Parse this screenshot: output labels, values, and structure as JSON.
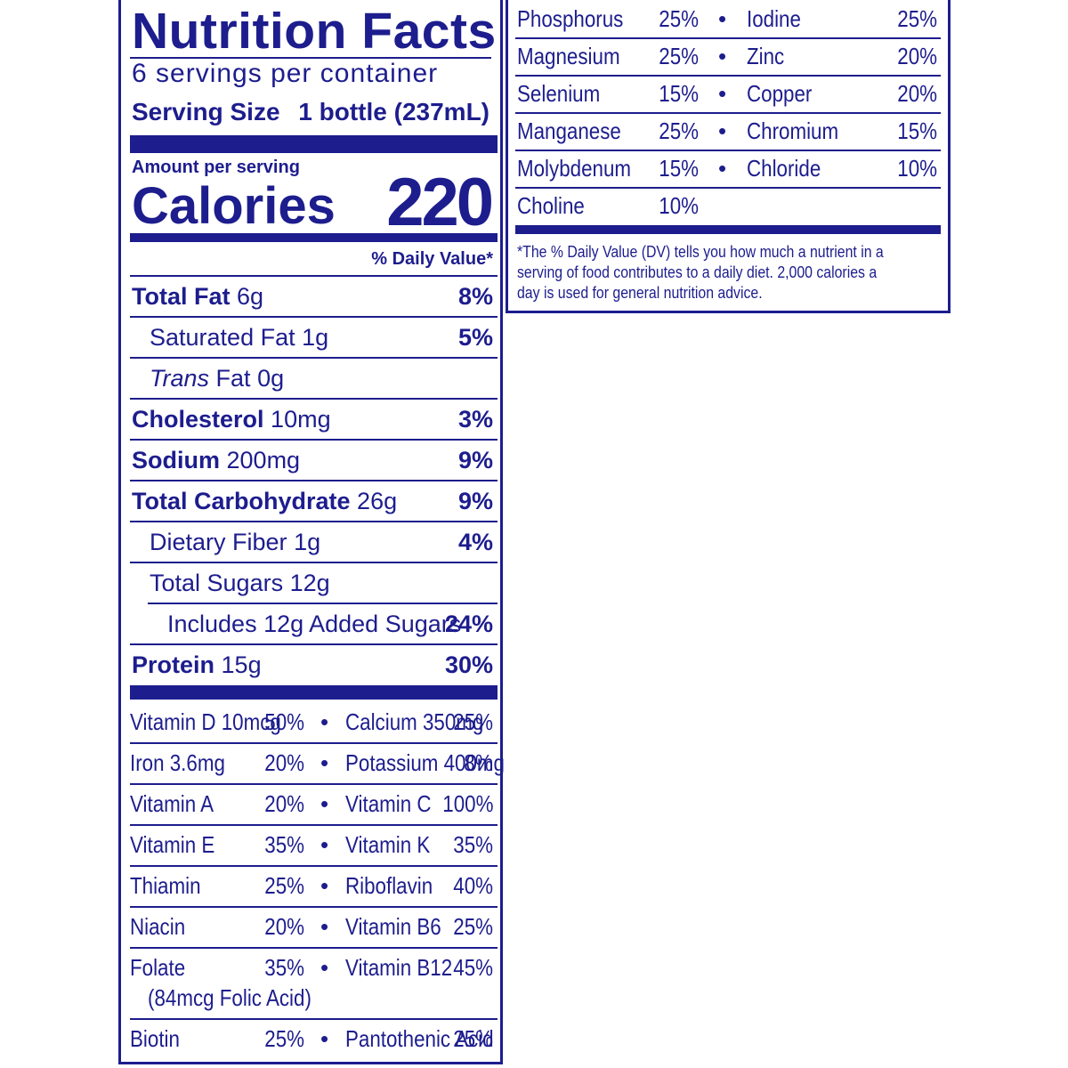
{
  "label": {
    "title": "Nutrition Facts",
    "servings_per_container": "6 servings per container",
    "serving_size_label": "Serving Size",
    "serving_size_value": "1 bottle (237mL)",
    "amount_per_serving": "Amount per serving",
    "calories_label": "Calories",
    "calories_value": "220",
    "dv_header": "% Daily Value*",
    "nutrients": [
      {
        "name": "Total Fat",
        "amount": "6g",
        "dv": "8%"
      },
      {
        "name": "Saturated Fat",
        "amount": "1g",
        "dv": "5%"
      },
      {
        "name": "Trans",
        "name2": "Fat",
        "amount": "0g",
        "dv": ""
      },
      {
        "name": "Cholesterol",
        "amount": "10mg",
        "dv": "3%"
      },
      {
        "name": "Sodium",
        "amount": "200mg",
        "dv": "9%"
      },
      {
        "name": "Total Carbohydrate",
        "amount": "26g",
        "dv": "9%"
      },
      {
        "name": "Dietary Fiber",
        "amount": "1g",
        "dv": "4%"
      },
      {
        "name": "Total Sugars",
        "amount": "12g",
        "dv": ""
      },
      {
        "name": "Includes 12g Added Sugars",
        "amount": "",
        "dv": "24%"
      },
      {
        "name": "Protein",
        "amount": "15g",
        "dv": "30%"
      }
    ],
    "vitamins": [
      {
        "l_name": "Vitamin D 10mcg",
        "l_dv": "50%",
        "r_name": "Calcium 350mg",
        "r_dv": "25%"
      },
      {
        "l_name": "Iron 3.6mg",
        "l_dv": "20%",
        "r_name": "Potassium 400mg",
        "r_dv": "8%"
      },
      {
        "l_name": "Vitamin A",
        "l_dv": "20%",
        "r_name": "Vitamin C",
        "r_dv": "100%"
      },
      {
        "l_name": "Vitamin E",
        "l_dv": "35%",
        "r_name": "Vitamin K",
        "r_dv": "35%"
      },
      {
        "l_name": "Thiamin",
        "l_dv": "25%",
        "r_name": "Riboflavin",
        "r_dv": "40%"
      },
      {
        "l_name": "Niacin",
        "l_dv": "20%",
        "r_name": "Vitamin B6",
        "r_dv": "25%"
      },
      {
        "l_name": "Folate",
        "l_sub": "(84mcg Folic Acid)",
        "l_dv": "35%",
        "r_name": "Vitamin B12",
        "r_dv": "45%"
      },
      {
        "l_name": "Biotin",
        "l_dv": "25%",
        "r_name": "Pantothenic Acid",
        "r_dv": "25%"
      }
    ],
    "minerals": [
      {
        "l_name": "Phosphorus",
        "l_dv": "25%",
        "r_name": "Iodine",
        "r_dv": "25%"
      },
      {
        "l_name": "Magnesium",
        "l_dv": "25%",
        "r_name": "Zinc",
        "r_dv": "20%"
      },
      {
        "l_name": "Selenium",
        "l_dv": "15%",
        "r_name": "Copper",
        "r_dv": "20%"
      },
      {
        "l_name": "Manganese",
        "l_dv": "25%",
        "r_name": "Chromium",
        "r_dv": "15%"
      },
      {
        "l_name": "Molybdenum",
        "l_dv": "15%",
        "r_name": "Chloride",
        "r_dv": "10%"
      },
      {
        "l_name": "Choline",
        "l_dv": "10%",
        "r_name": "",
        "r_dv": ""
      }
    ],
    "bullet": "•",
    "footnote": "*The % Daily Value (DV) tells you how much a nutrient in a serving of food contributes to a daily diet. 2,000 calories a day is used for general nutrition advice.",
    "color": "#1d1d8e"
  }
}
